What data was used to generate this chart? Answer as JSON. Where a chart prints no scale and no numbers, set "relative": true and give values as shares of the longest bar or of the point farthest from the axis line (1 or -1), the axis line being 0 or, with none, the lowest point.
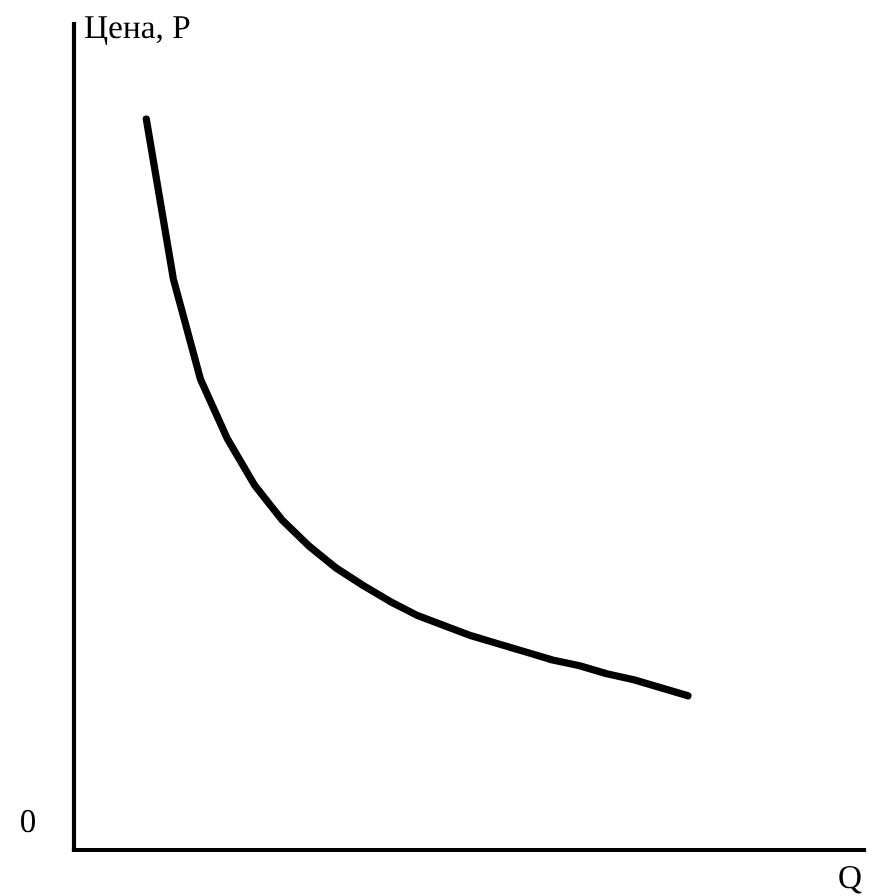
{
  "chart_data": {
    "type": "line",
    "relative": true,
    "ylabel": "Цена, P",
    "xlabel": "Q",
    "annotations": [
      "0"
    ],
    "categories": [
      null,
      null,
      null,
      null,
      null,
      null,
      null,
      null,
      null,
      null,
      null,
      null,
      null,
      null,
      null,
      null,
      null,
      null,
      null,
      null,
      null
    ],
    "series": [
      {
        "color": "#000000",
        "values": [
          1,
          0.781,
          0.644,
          0.562,
          0.499,
          0.452,
          0.416,
          0.386,
          0.362,
          0.34,
          0.321,
          0.307,
          0.293,
          0.282,
          0.271,
          0.26,
          0.252,
          0.241,
          0.233,
          0.222,
          0.211
        ]
      }
    ],
    "tick_labels": false
  }
}
